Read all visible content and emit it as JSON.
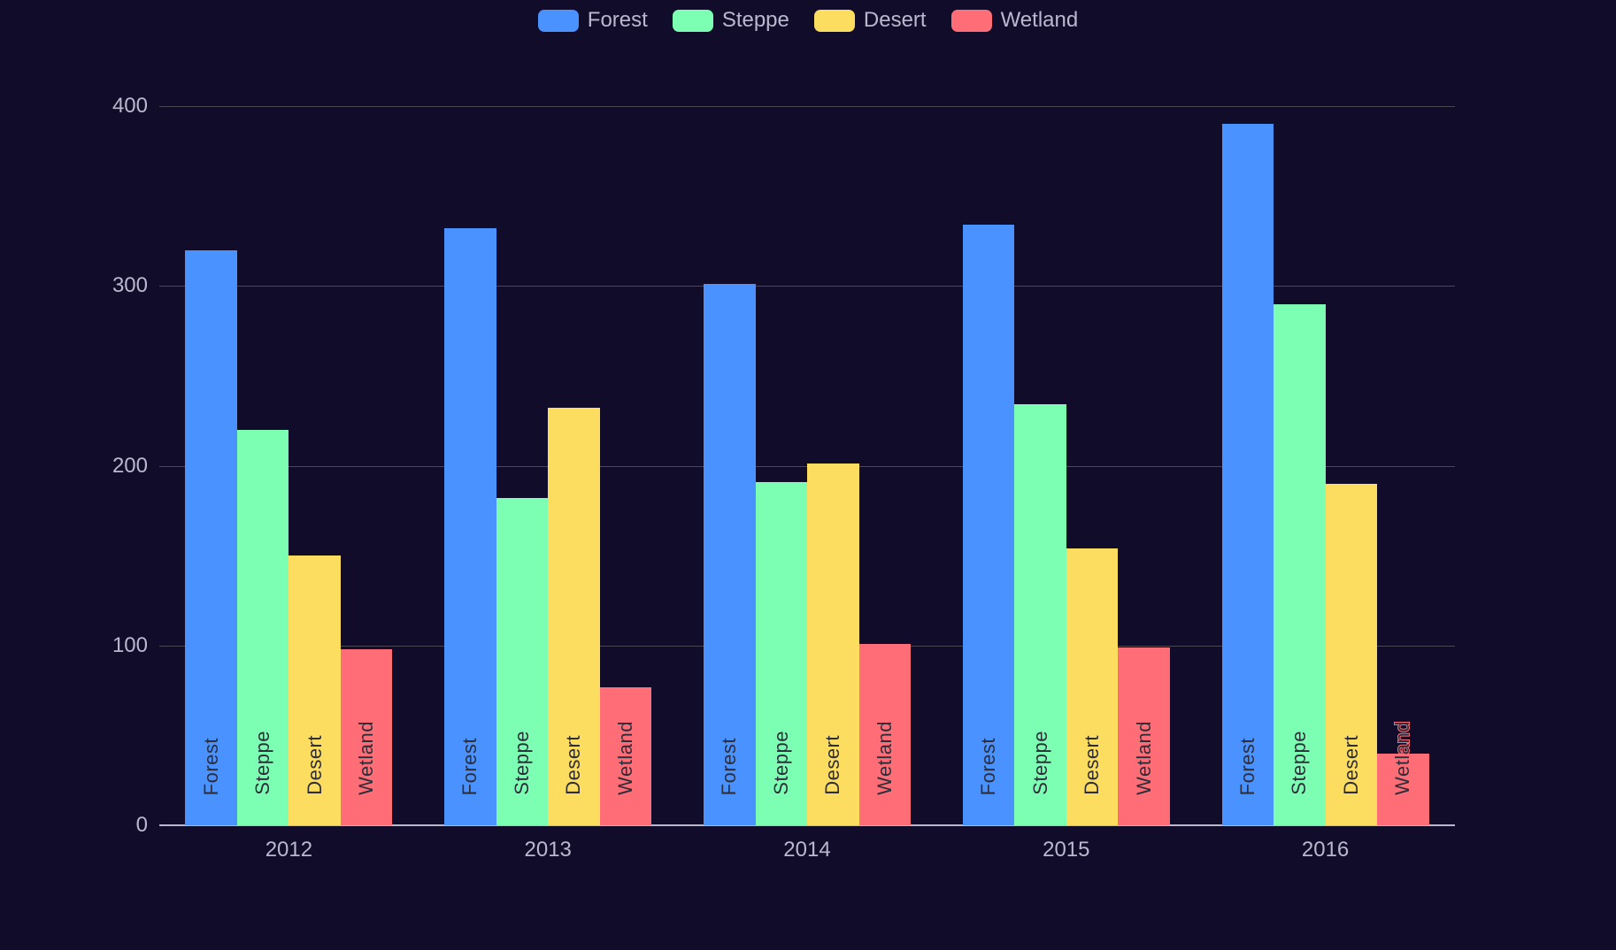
{
  "colors": {
    "background": "#100C2A",
    "axis_text": "#B9B8CE",
    "gridline": "#484753",
    "axis_line": "#B9B8CE",
    "bar_label_fill": "#2E2E3A"
  },
  "legend": {
    "items": [
      {
        "label": "Forest",
        "color": "#4992FF"
      },
      {
        "label": "Steppe",
        "color": "#7CFFB2"
      },
      {
        "label": "Desert",
        "color": "#FDDD60"
      },
      {
        "label": "Wetland",
        "color": "#FF6E76"
      }
    ]
  },
  "chart_data": {
    "type": "bar",
    "title": "",
    "categories": [
      "2012",
      "2013",
      "2014",
      "2015",
      "2016"
    ],
    "series": [
      {
        "name": "Forest",
        "color": "#4992FF",
        "values": [
          320,
          332,
          301,
          334,
          390
        ]
      },
      {
        "name": "Steppe",
        "color": "#7CFFB2",
        "values": [
          220,
          182,
          191,
          234,
          290
        ]
      },
      {
        "name": "Desert",
        "color": "#FDDD60",
        "values": [
          150,
          232,
          201,
          154,
          190
        ]
      },
      {
        "name": "Wetland",
        "color": "#FF6E76",
        "values": [
          98,
          77,
          101,
          99,
          40
        ]
      }
    ],
    "xlabel": "",
    "ylabel": "",
    "ylim": [
      0,
      400
    ],
    "yticks": [
      0,
      100,
      200,
      300,
      400
    ],
    "grid": true,
    "legend_position": "top-center",
    "bar_labels": "series-name rotated 90deg, inside bottom of each bar"
  }
}
